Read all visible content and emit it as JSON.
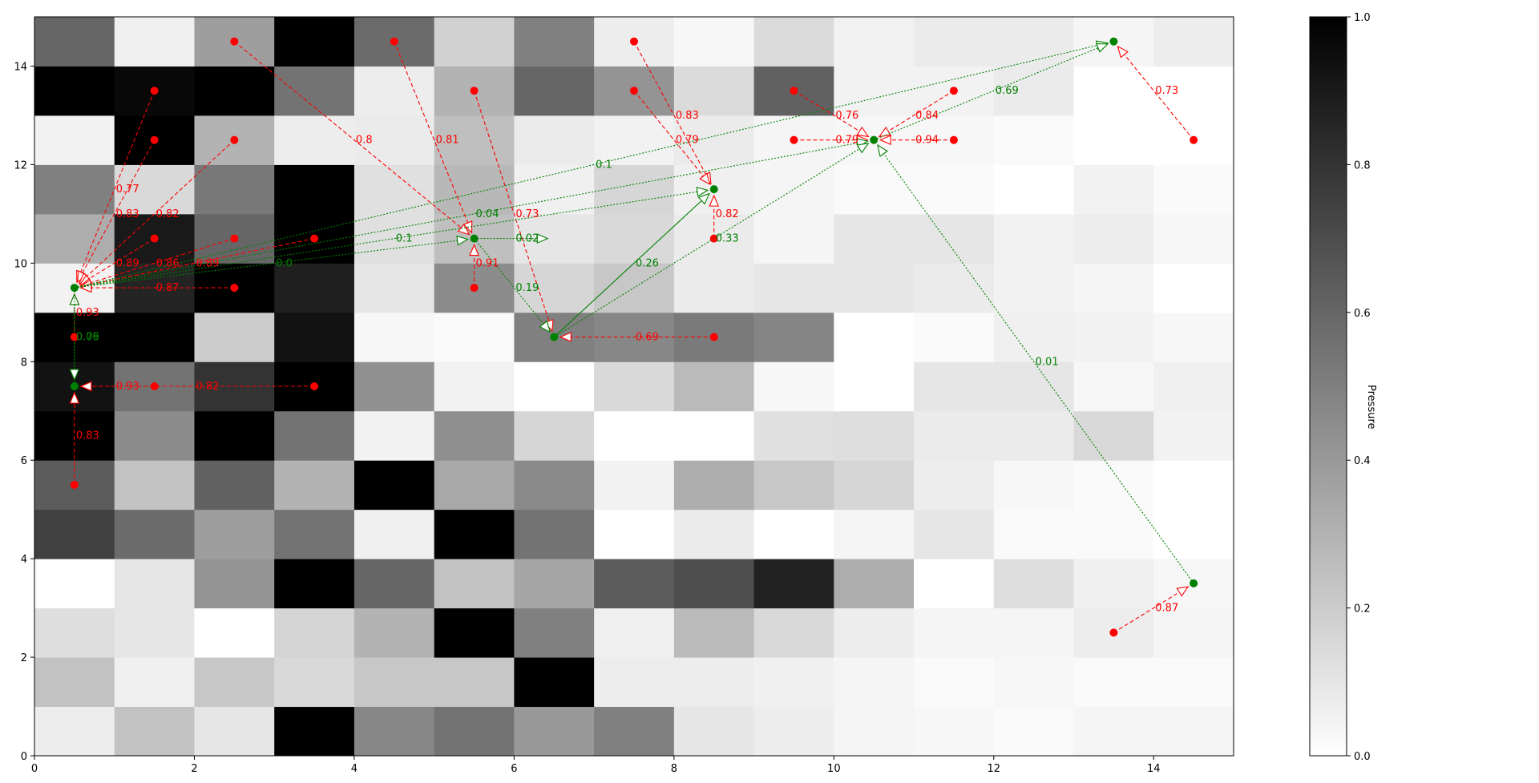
{
  "chart_data": {
    "type": "heatmap",
    "title": "",
    "xlabel": "",
    "ylabel": "",
    "xlim": [
      0,
      15
    ],
    "ylim": [
      0,
      15
    ],
    "x_ticks": [
      "0",
      "2",
      "4",
      "6",
      "8",
      "10",
      "12",
      "14"
    ],
    "y_ticks": [
      "0",
      "2",
      "4",
      "6",
      "8",
      "10",
      "12",
      "14"
    ],
    "colormap": "gray_r",
    "colorbar": {
      "label": "Pressure",
      "range": [
        0,
        1
      ],
      "ticks": [
        "0.0",
        "0.2",
        "0.4",
        "0.6",
        "0.8",
        "1.0"
      ]
    },
    "grid": false,
    "pressure_grid": [
      [
        0.07,
        0.24,
        0.1,
        1.0,
        0.47,
        0.55,
        0.4,
        0.5,
        0.1,
        0.07,
        0.04,
        0.03,
        0.02,
        0.04,
        0.04
      ],
      [
        0.24,
        0.06,
        0.22,
        0.15,
        0.22,
        0.22,
        1.0,
        0.07,
        0.07,
        0.06,
        0.04,
        0.02,
        0.03,
        0.02,
        0.02
      ],
      [
        0.13,
        0.1,
        0.0,
        0.17,
        0.3,
        1.0,
        0.5,
        0.06,
        0.27,
        0.15,
        0.07,
        0.04,
        0.04,
        0.07,
        0.04
      ],
      [
        0.0,
        0.1,
        0.42,
        1.0,
        0.6,
        0.24,
        0.35,
        0.64,
        0.7,
        0.87,
        0.32,
        0.0,
        0.13,
        0.06,
        0.03
      ],
      [
        0.75,
        0.58,
        0.38,
        0.55,
        0.06,
        1.0,
        0.55,
        0.0,
        0.08,
        0.0,
        0.04,
        0.1,
        0.02,
        0.02,
        0.0
      ],
      [
        0.64,
        0.24,
        0.62,
        0.3,
        1.0,
        0.34,
        0.46,
        0.05,
        0.32,
        0.22,
        0.16,
        0.07,
        0.03,
        0.02,
        0.0
      ],
      [
        1.0,
        0.45,
        1.0,
        0.55,
        0.05,
        0.44,
        0.16,
        0.0,
        0.0,
        0.12,
        0.13,
        0.08,
        0.08,
        0.15,
        0.05
      ],
      [
        0.93,
        0.55,
        0.8,
        1.0,
        0.43,
        0.05,
        0.0,
        0.15,
        0.27,
        0.03,
        0.0,
        0.1,
        0.1,
        0.03,
        0.06
      ],
      [
        1.0,
        1.0,
        0.2,
        0.93,
        0.03,
        0.02,
        0.5,
        0.47,
        0.52,
        0.48,
        0.0,
        0.02,
        0.06,
        0.05,
        0.03
      ],
      [
        0.05,
        0.86,
        1.0,
        0.88,
        0.1,
        0.45,
        0.16,
        0.22,
        0.08,
        0.1,
        0.1,
        0.08,
        0.05,
        0.04,
        0.0
      ],
      [
        0.32,
        0.9,
        0.6,
        1.0,
        0.12,
        0.25,
        0.1,
        0.15,
        0.08,
        0.04,
        0.1,
        0.1,
        0.05,
        0.07,
        0.03
      ],
      [
        0.5,
        0.15,
        0.53,
        1.0,
        0.12,
        0.28,
        0.06,
        0.16,
        0.06,
        0.04,
        0.02,
        0.02,
        0.0,
        0.05,
        0.02
      ],
      [
        0.05,
        1.0,
        0.3,
        0.07,
        0.08,
        0.25,
        0.08,
        0.05,
        0.08,
        0.04,
        0.03,
        0.03,
        0.02,
        0.0,
        0.0
      ],
      [
        1.0,
        0.97,
        1.0,
        0.55,
        0.07,
        0.3,
        0.6,
        0.42,
        0.14,
        0.62,
        0.05,
        0.05,
        0.08,
        0.0,
        0.0
      ],
      [
        0.6,
        0.06,
        0.38,
        1.0,
        0.58,
        0.18,
        0.5,
        0.07,
        0.03,
        0.14,
        0.05,
        0.08,
        0.08,
        0.04,
        0.07
      ]
    ],
    "nodes": [
      {
        "x": 0.5,
        "y": 9.5,
        "color": "#008000"
      },
      {
        "x": 0.5,
        "y": 7.5,
        "color": "#008000"
      },
      {
        "x": 5.5,
        "y": 10.5,
        "color": "#008000"
      },
      {
        "x": 6.5,
        "y": 8.5,
        "color": "#008000"
      },
      {
        "x": 8.5,
        "y": 11.5,
        "color": "#008000"
      },
      {
        "x": 10.5,
        "y": 12.5,
        "color": "#008000"
      },
      {
        "x": 13.5,
        "y": 14.5,
        "color": "#008000"
      },
      {
        "x": 14.5,
        "y": 3.5,
        "color": "#008000"
      },
      {
        "x": 1.5,
        "y": 13.5,
        "color": "#ff0000"
      },
      {
        "x": 1.5,
        "y": 12.5,
        "color": "#ff0000"
      },
      {
        "x": 2.5,
        "y": 12.5,
        "color": "#ff0000"
      },
      {
        "x": 1.5,
        "y": 10.5,
        "color": "#ff0000"
      },
      {
        "x": 2.5,
        "y": 10.5,
        "color": "#ff0000"
      },
      {
        "x": 3.5,
        "y": 10.5,
        "color": "#ff0000"
      },
      {
        "x": 2.5,
        "y": 9.5,
        "color": "#ff0000"
      },
      {
        "x": 0.5,
        "y": 8.5,
        "color": "#ff0000"
      },
      {
        "x": 1.5,
        "y": 7.5,
        "color": "#ff0000"
      },
      {
        "x": 3.5,
        "y": 7.5,
        "color": "#ff0000"
      },
      {
        "x": 0.5,
        "y": 5.5,
        "color": "#ff0000"
      },
      {
        "x": 2.5,
        "y": 14.5,
        "color": "#ff0000"
      },
      {
        "x": 4.5,
        "y": 14.5,
        "color": "#ff0000"
      },
      {
        "x": 5.5,
        "y": 13.5,
        "color": "#ff0000"
      },
      {
        "x": 5.5,
        "y": 9.5,
        "color": "#ff0000"
      },
      {
        "x": 7.5,
        "y": 14.5,
        "color": "#ff0000"
      },
      {
        "x": 7.5,
        "y": 13.5,
        "color": "#ff0000"
      },
      {
        "x": 8.5,
        "y": 10.5,
        "color": "#ff0000"
      },
      {
        "x": 8.5,
        "y": 8.5,
        "color": "#ff0000"
      },
      {
        "x": 9.5,
        "y": 13.5,
        "color": "#ff0000"
      },
      {
        "x": 9.5,
        "y": 12.5,
        "color": "#ff0000"
      },
      {
        "x": 11.5,
        "y": 13.5,
        "color": "#ff0000"
      },
      {
        "x": 11.5,
        "y": 12.5,
        "color": "#ff0000"
      },
      {
        "x": 14.5,
        "y": 12.5,
        "color": "#ff0000"
      },
      {
        "x": 13.5,
        "y": 2.5,
        "color": "#ff0000"
      }
    ],
    "edges": [
      {
        "from": [
          1.5,
          13.5
        ],
        "to": [
          0.5,
          9.5
        ],
        "label": "0.77",
        "color": "#ff0000",
        "style": "dashed"
      },
      {
        "from": [
          1.5,
          12.5
        ],
        "to": [
          0.5,
          9.5
        ],
        "label": "0.83",
        "color": "#ff0000",
        "style": "dashed"
      },
      {
        "from": [
          2.5,
          12.5
        ],
        "to": [
          0.5,
          9.5
        ],
        "label": "0.82",
        "color": "#ff0000",
        "style": "dashed"
      },
      {
        "from": [
          1.5,
          10.5
        ],
        "to": [
          0.5,
          9.5
        ],
        "label": "0.89",
        "color": "#ff0000",
        "style": "dashed"
      },
      {
        "from": [
          2.5,
          10.5
        ],
        "to": [
          0.5,
          9.5
        ],
        "label": "0.86",
        "color": "#ff0000",
        "style": "dashed"
      },
      {
        "from": [
          3.5,
          10.5
        ],
        "to": [
          0.5,
          9.5
        ],
        "label": "0.89",
        "color": "#ff0000",
        "style": "dashed"
      },
      {
        "from": [
          2.5,
          9.5
        ],
        "to": [
          0.5,
          9.5
        ],
        "label": "0.87",
        "color": "#ff0000",
        "style": "dashed"
      },
      {
        "from": [
          0.5,
          8.5
        ],
        "to": [
          0.5,
          9.5
        ],
        "label": "0.93",
        "color": "#ff0000",
        "style": "dashed"
      },
      {
        "from": [
          1.5,
          7.5
        ],
        "to": [
          0.5,
          7.5
        ],
        "label": "0.93",
        "color": "#ff0000",
        "style": "dashed"
      },
      {
        "from": [
          3.5,
          7.5
        ],
        "to": [
          0.5,
          7.5
        ],
        "label": "0.82",
        "color": "#ff0000",
        "style": "dashed"
      },
      {
        "from": [
          0.5,
          5.5
        ],
        "to": [
          0.5,
          7.5
        ],
        "label": "0.83",
        "color": "#ff0000",
        "style": "dashed"
      },
      {
        "from": [
          2.5,
          14.5
        ],
        "to": [
          5.5,
          10.5
        ],
        "label": "0.8",
        "color": "#ff0000",
        "style": "dashed"
      },
      {
        "from": [
          4.5,
          14.5
        ],
        "to": [
          5.5,
          10.5
        ],
        "label": "0.81",
        "color": "#ff0000",
        "style": "dashed"
      },
      {
        "from": [
          5.5,
          9.5
        ],
        "to": [
          5.5,
          10.5
        ],
        "label": "0.91",
        "color": "#ff0000",
        "style": "dashed"
      },
      {
        "from": [
          5.5,
          13.5
        ],
        "to": [
          6.5,
          8.5
        ],
        "label": "0.73",
        "color": "#ff0000",
        "style": "dashed"
      },
      {
        "from": [
          8.5,
          8.5
        ],
        "to": [
          6.5,
          8.5
        ],
        "label": "0.69",
        "color": "#ff0000",
        "style": "dashed"
      },
      {
        "from": [
          7.5,
          14.5
        ],
        "to": [
          8.5,
          11.5
        ],
        "label": "0.83",
        "color": "#ff0000",
        "style": "dashed"
      },
      {
        "from": [
          7.5,
          13.5
        ],
        "to": [
          8.5,
          11.5
        ],
        "label": "0.79",
        "color": "#ff0000",
        "style": "dashed"
      },
      {
        "from": [
          8.5,
          10.5
        ],
        "to": [
          8.5,
          11.5
        ],
        "label": "0.82",
        "color": "#ff0000",
        "style": "dashed"
      },
      {
        "from": [
          9.5,
          13.5
        ],
        "to": [
          10.5,
          12.5
        ],
        "label": "0.76",
        "color": "#ff0000",
        "style": "dashed"
      },
      {
        "from": [
          9.5,
          12.5
        ],
        "to": [
          10.5,
          12.5
        ],
        "label": "0.79",
        "color": "#ff0000",
        "style": "dashed"
      },
      {
        "from": [
          11.5,
          13.5
        ],
        "to": [
          10.5,
          12.5
        ],
        "label": "0.84",
        "color": "#ff0000",
        "style": "dashed"
      },
      {
        "from": [
          11.5,
          12.5
        ],
        "to": [
          10.5,
          12.5
        ],
        "label": "0.94",
        "color": "#ff0000",
        "style": "dashed"
      },
      {
        "from": [
          14.5,
          12.5
        ],
        "to": [
          13.5,
          14.5
        ],
        "label": "0.73",
        "color": "#ff0000",
        "style": "dashed"
      },
      {
        "from": [
          13.5,
          2.5
        ],
        "to": [
          14.5,
          3.5
        ],
        "label": "0.87",
        "color": "#ff0000",
        "style": "dashed"
      },
      {
        "from": [
          0.5,
          7.5
        ],
        "to": [
          0.5,
          9.5
        ],
        "label": "0.09",
        "color": "#008000",
        "style": "dotted"
      },
      {
        "from": [
          0.5,
          9.5
        ],
        "to": [
          0.5,
          7.5
        ],
        "label": "0.76",
        "color": "#008000",
        "style": "dotted"
      },
      {
        "from": [
          0.5,
          9.5
        ],
        "to": [
          5.5,
          10.5
        ],
        "label": "0.0",
        "color": "#008000",
        "style": "dotted"
      },
      {
        "from": [
          0.5,
          9.5
        ],
        "to": [
          8.5,
          11.5
        ],
        "label": "0.1",
        "color": "#008000",
        "style": "dotted"
      },
      {
        "from": [
          0.5,
          9.5
        ],
        "to": [
          10.5,
          12.5
        ],
        "label": "0.04",
        "color": "#008000",
        "style": "dotted"
      },
      {
        "from": [
          0.5,
          9.5
        ],
        "to": [
          13.5,
          14.5
        ],
        "label": "0.1",
        "color": "#008000",
        "style": "dotted"
      },
      {
        "from": [
          5.5,
          10.5
        ],
        "to": [
          6.5,
          8.5
        ],
        "label": "0.19",
        "color": "#008000",
        "style": "dotted"
      },
      {
        "from": [
          6.5,
          8.5
        ],
        "to": [
          8.5,
          11.5
        ],
        "label": "0.26",
        "color": "#008000",
        "style": "solid"
      },
      {
        "from": [
          6.5,
          8.5
        ],
        "to": [
          10.5,
          12.5
        ],
        "label": "0.33",
        "color": "#008000",
        "style": "dotted"
      },
      {
        "from": [
          14.5,
          3.5
        ],
        "to": [
          10.5,
          12.5
        ],
        "label": "0.01",
        "color": "#008000",
        "style": "dotted"
      },
      {
        "from": [
          10.5,
          12.5
        ],
        "to": [
          13.5,
          14.5
        ],
        "label": "0.69",
        "color": "#008000",
        "style": "dotted"
      },
      {
        "from": [
          5.5,
          10.5
        ],
        "to": [
          6.5,
          10.5
        ],
        "label": "0.02",
        "color": "#008000",
        "style": "dotted"
      }
    ]
  }
}
